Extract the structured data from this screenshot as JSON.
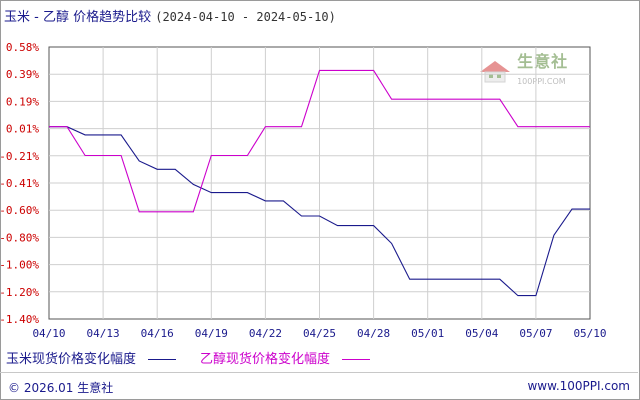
{
  "title": {
    "main": "玉米 - 乙醇 价格趋势比较",
    "range": "(2024-04-10 - 2024-05-10)"
  },
  "watermark": {
    "cn": "生意社",
    "en": "100PPI.COM"
  },
  "legend": [
    {
      "label": "玉米现货价格变化幅度",
      "color": "#1a1a8c"
    },
    {
      "label": "乙醇现货价格变化幅度",
      "color": "#cc00cc"
    }
  ],
  "footer": {
    "copyright": "© 2026.01 生意社",
    "site": "www.100PPI.com"
  },
  "chart_data": {
    "type": "line",
    "title": "玉米 - 乙醇 价格趋势比较",
    "x_tick_labels": [
      "04/10",
      "04/13",
      "04/16",
      "04/19",
      "04/22",
      "04/25",
      "04/28",
      "05/01",
      "05/04",
      "05/07",
      "05/10"
    ],
    "y_tick_labels": [
      "0.58%",
      "0.39%",
      "0.19%",
      "0.01%",
      "-0.21%",
      "-0.41%",
      "-0.60%",
      "-0.80%",
      "-1.00%",
      "-1.20%",
      "-1.40%"
    ],
    "y_tick_values": [
      0.58,
      0.39,
      0.19,
      0.01,
      -0.21,
      -0.41,
      -0.6,
      -0.8,
      -1.0,
      -1.2,
      -1.4
    ],
    "ylim": [
      -1.4,
      0.58
    ],
    "xlim": [
      "2024-04-10",
      "2024-05-10"
    ],
    "grid": true,
    "legend_position": "bottom",
    "series": [
      {
        "name": "玉米现货价格变化幅度",
        "color": "#1a1a8c",
        "x": [
          "2024-04-10",
          "2024-04-11",
          "2024-04-12",
          "2024-04-13",
          "2024-04-14",
          "2024-04-15",
          "2024-04-16",
          "2024-04-17",
          "2024-04-18",
          "2024-04-19",
          "2024-04-20",
          "2024-04-21",
          "2024-04-22",
          "2024-04-23",
          "2024-04-24",
          "2024-04-25",
          "2024-04-26",
          "2024-04-27",
          "2024-04-28",
          "2024-04-29",
          "2024-04-30",
          "2024-05-01",
          "2024-05-02",
          "2024-05-03",
          "2024-05-04",
          "2024-05-05",
          "2024-05-06",
          "2024-05-07",
          "2024-05-08",
          "2024-05-09",
          "2024-05-10"
        ],
        "values": [
          0.0,
          0.0,
          -0.06,
          -0.06,
          -0.06,
          -0.25,
          -0.31,
          -0.31,
          -0.42,
          -0.48,
          -0.48,
          -0.48,
          -0.54,
          -0.54,
          -0.65,
          -0.65,
          -0.72,
          -0.72,
          -0.72,
          -0.85,
          -1.11,
          -1.11,
          -1.11,
          -1.11,
          -1.11,
          -1.11,
          -1.23,
          -1.23,
          -0.79,
          -0.6,
          -0.6
        ]
      },
      {
        "name": "乙醇现货价格变化幅度",
        "color": "#cc00cc",
        "x": [
          "2024-04-10",
          "2024-04-11",
          "2024-04-12",
          "2024-04-13",
          "2024-04-14",
          "2024-04-15",
          "2024-04-16",
          "2024-04-17",
          "2024-04-18",
          "2024-04-19",
          "2024-04-20",
          "2024-04-21",
          "2024-04-22",
          "2024-04-23",
          "2024-04-24",
          "2024-04-25",
          "2024-04-26",
          "2024-04-27",
          "2024-04-28",
          "2024-04-29",
          "2024-04-30",
          "2024-05-01",
          "2024-05-02",
          "2024-05-03",
          "2024-05-04",
          "2024-05-05",
          "2024-05-06",
          "2024-05-07",
          "2024-05-08",
          "2024-05-09",
          "2024-05-10"
        ],
        "values": [
          0.0,
          0.0,
          -0.21,
          -0.21,
          -0.21,
          -0.62,
          -0.62,
          -0.62,
          -0.62,
          -0.21,
          -0.21,
          -0.21,
          0.0,
          0.0,
          0.0,
          0.41,
          0.41,
          0.41,
          0.41,
          0.2,
          0.2,
          0.2,
          0.2,
          0.2,
          0.2,
          0.2,
          0.0,
          0.0,
          0.0,
          0.0,
          0.0
        ]
      }
    ]
  }
}
